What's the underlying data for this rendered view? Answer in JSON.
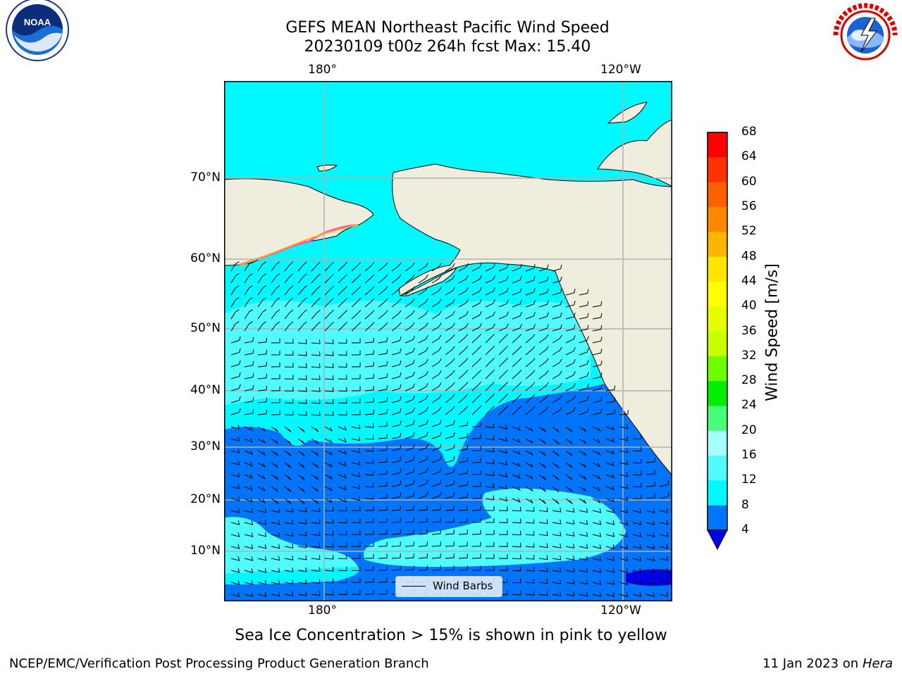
{
  "title": {
    "line1": "GEFS MEAN Northeast Pacific Wind Speed",
    "line2": "20230109 t00z 264h fcst   Max: 15.40"
  },
  "map": {
    "lon_labels_top": [
      "180°",
      "120°W"
    ],
    "lon_labels_bottom": [
      "180°",
      "120°W"
    ],
    "lat_labels": [
      "70°N",
      "60°N",
      "50°N",
      "40°N",
      "30°N",
      "20°N",
      "10°N"
    ],
    "legend": {
      "label": "Wind Barbs"
    },
    "colors": {
      "land": "#efedde",
      "speed_4_8": "#0074fb",
      "speed_8_12": "#00f8ff",
      "speed_12_16": "#4ffbfd",
      "sea_ice": "#ff4fc8"
    }
  },
  "colorbar": {
    "title": "Wind Speed [m/s]",
    "ticks": [
      "68",
      "64",
      "60",
      "56",
      "52",
      "48",
      "44",
      "40",
      "36",
      "32",
      "28",
      "24",
      "20",
      "16",
      "12",
      "8",
      "4"
    ],
    "colors": [
      "#ff0000",
      "#ff3300",
      "#ff6000",
      "#ff8800",
      "#ffb400",
      "#ffe600",
      "#ffff00",
      "#e5ff00",
      "#c6ff00",
      "#6ffe00",
      "#00ee00",
      "#48fe78",
      "#a4fffd",
      "#4ffbfd",
      "#00f8ff",
      "#0074fb"
    ],
    "extend_color": "#0000e6"
  },
  "caption": "Sea Ice Concentration > 15% is shown in pink to yellow",
  "footer": {
    "left": "NCEP/EMC/Verification Post Processing Product Generation Branch",
    "right_date": "11 Jan 2023 on ",
    "right_machine": "Hera"
  },
  "logos": {
    "noaa_text": "NOAA",
    "noaa_ring_text": "NATIONAL OCEANIC AND ATMOSPHERIC ADMINISTRATION · U.S. DEPARTMENT OF COMMERCE",
    "nws_ring_text": "NATIONAL WEATHER SERVICE"
  }
}
